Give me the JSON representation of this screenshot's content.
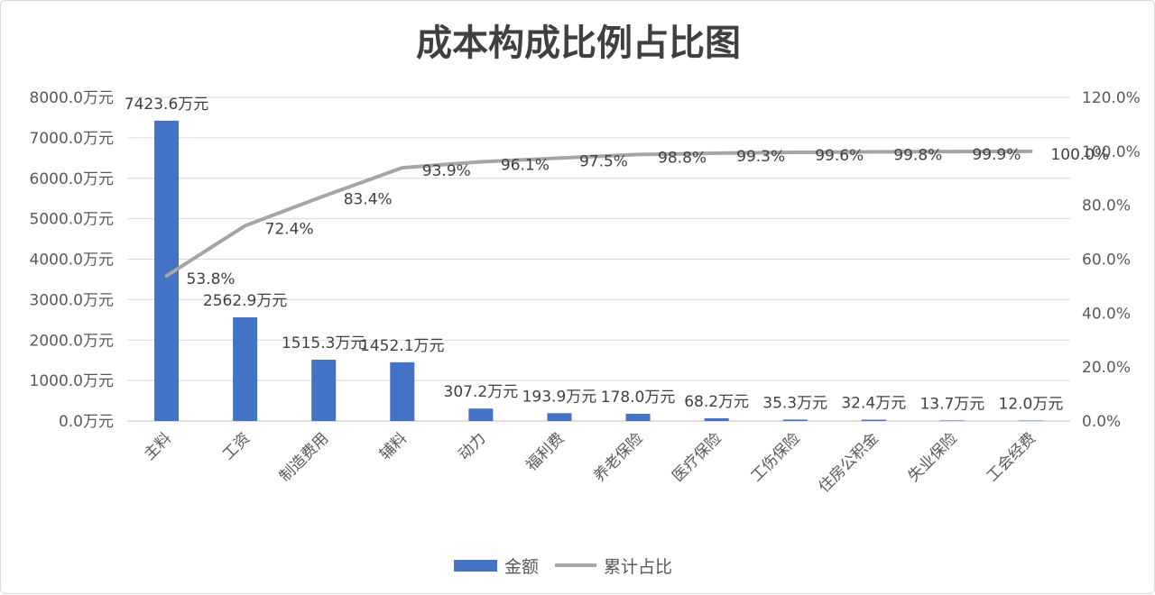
{
  "chart_data": {
    "type": "bar",
    "title": "成本构成比例占比图",
    "categories": [
      "主料",
      "工资",
      "制造费用",
      "辅料",
      "动力",
      "福利费",
      "养老保险",
      "医疗保险",
      "工伤保险",
      "住房公积金",
      "失业保险",
      "工会经费"
    ],
    "series": [
      {
        "name": "金额",
        "type": "bar",
        "axis": "left",
        "values": [
          7423.6,
          2562.9,
          1515.3,
          1452.1,
          307.2,
          193.9,
          178.0,
          68.2,
          35.3,
          32.4,
          13.7,
          12.0
        ],
        "labels": [
          "7423.6万元",
          "2562.9万元",
          "1515.3万元",
          "1452.1万元",
          "307.2万元",
          "193.9万元",
          "178.0万元",
          "68.2万元",
          "35.3万元",
          "32.4万元",
          "13.7万元",
          "12.0万元"
        ],
        "color": "#4472C4"
      },
      {
        "name": "累计占比",
        "type": "line",
        "axis": "right",
        "values": [
          53.8,
          72.4,
          83.4,
          93.9,
          96.1,
          97.5,
          98.8,
          99.3,
          99.6,
          99.8,
          99.9,
          100.0
        ],
        "labels": [
          "53.8%",
          "72.4%",
          "83.4%",
          "93.9%",
          "96.1%",
          "97.5%",
          "98.8%",
          "99.3%",
          "99.6%",
          "99.8%",
          "99.9%",
          "100.0%"
        ],
        "color": "#A5A5A5"
      }
    ],
    "y_left": {
      "ylim": [
        0,
        8000
      ],
      "ticks": [
        "0.0万元",
        "1000.0万元",
        "2000.0万元",
        "3000.0万元",
        "4000.0万元",
        "5000.0万元",
        "6000.0万元",
        "7000.0万元",
        "8000.0万元"
      ]
    },
    "y_right": {
      "ylim": [
        0,
        120
      ],
      "ticks": [
        "0.0%",
        "20.0%",
        "40.0%",
        "60.0%",
        "80.0%",
        "100.0%",
        "120.0%"
      ]
    },
    "grid": true,
    "legend_position": "bottom"
  }
}
